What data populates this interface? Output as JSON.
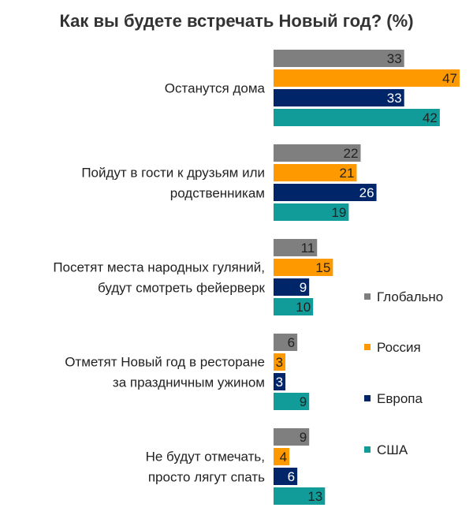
{
  "chart_data": {
    "type": "bar",
    "orientation": "horizontal",
    "title": "Как вы будете встречать Новый год? (%)",
    "xlabel": "",
    "ylabel": "",
    "xlim": [
      0,
      47
    ],
    "grid": false,
    "legend_position": "right",
    "categories": [
      [
        "Останутся дома"
      ],
      [
        "Пойдут в гости к друзьям или",
        "родственникам"
      ],
      [
        "Посетят места народных гуляний,",
        "будут смотреть фейерверк"
      ],
      [
        "Отметят Новый год в ресторане",
        "за праздничным ужином"
      ],
      [
        "Не будут отмечать,",
        "просто лягут спать"
      ]
    ],
    "series": [
      {
        "name": "Глобально",
        "color": "#7f7f7f",
        "label_color": "#222222",
        "values": [
          33,
          22,
          11,
          6,
          9
        ]
      },
      {
        "name": "Россия",
        "color": "#ff9900",
        "label_color": "#222222",
        "values": [
          47,
          21,
          15,
          3,
          4
        ]
      },
      {
        "name": "Европа",
        "color": "#002569",
        "label_color": "#ffffff",
        "values": [
          33,
          26,
          9,
          3,
          6
        ]
      },
      {
        "name": "США",
        "color": "#129c99",
        "label_color": "#222222",
        "values": [
          42,
          19,
          10,
          9,
          13
        ]
      }
    ]
  }
}
